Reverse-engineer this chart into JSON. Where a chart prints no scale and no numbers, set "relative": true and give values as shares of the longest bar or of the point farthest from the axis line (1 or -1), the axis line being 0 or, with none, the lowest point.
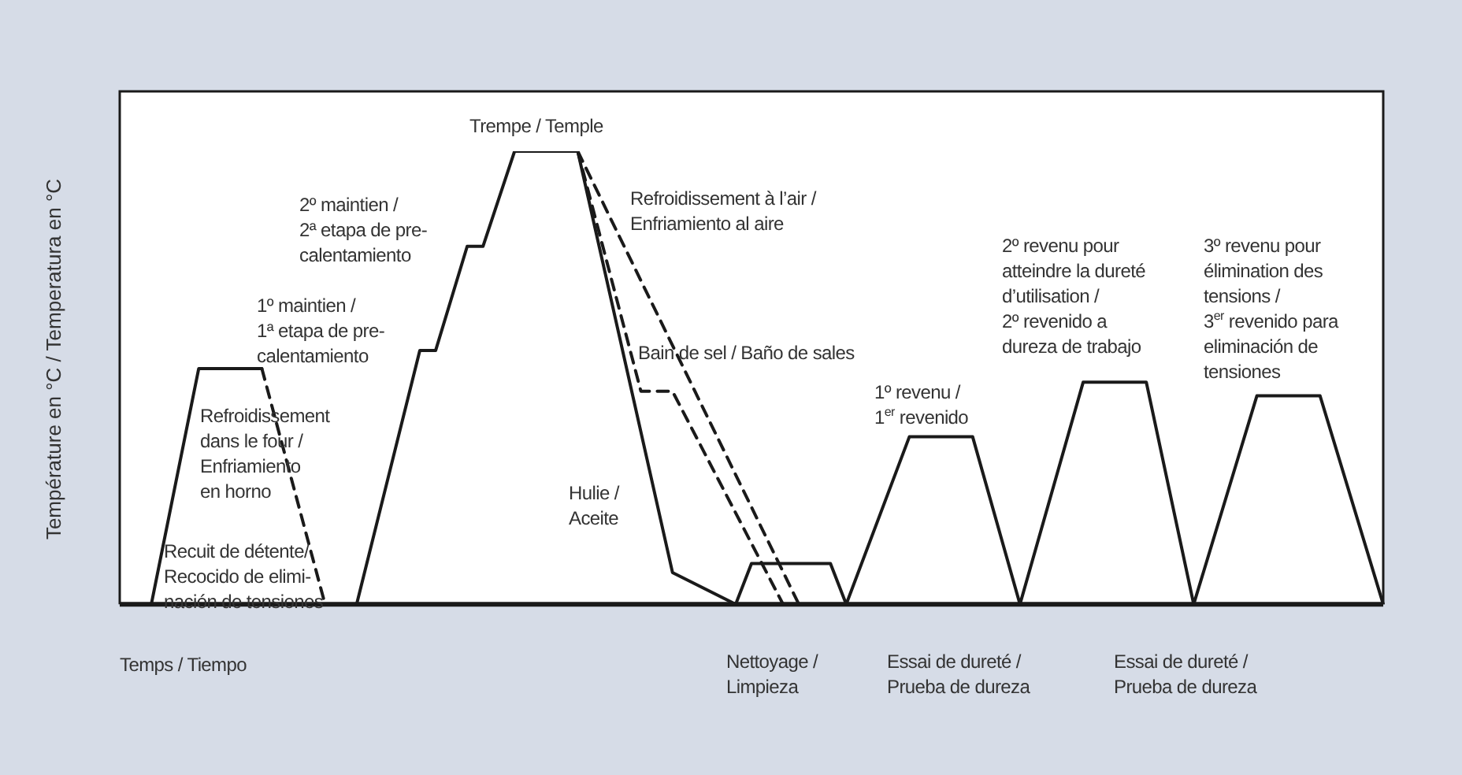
{
  "chart_data": {
    "type": "line",
    "relative": true,
    "ylabel": "Température en °C / Temperatura en °C",
    "xlabel": "Temps / Tiempo",
    "categories": [
      null,
      null,
      null,
      null,
      null,
      null,
      null,
      null,
      null,
      null,
      null,
      null,
      null,
      null,
      null,
      null,
      null,
      null,
      null,
      null,
      null,
      null,
      null,
      null,
      null,
      null,
      null,
      null,
      null,
      null,
      null,
      null,
      null,
      null,
      null,
      null,
      null,
      null,
      null,
      null,
      null,
      null,
      null,
      null,
      null,
      null,
      null,
      null,
      null,
      null,
      null,
      null,
      null,
      null,
      null,
      null,
      null,
      null,
      null,
      null,
      null,
      null,
      null,
      null,
      null,
      null,
      null,
      null,
      null,
      null,
      null,
      null,
      null,
      null,
      null,
      null,
      null,
      null,
      null,
      null,
      null
    ],
    "series": [
      {
        "color": "#1a1a1a",
        "line_style": "solid",
        "values": [
          null,
          null,
          0,
          null,
          null,
          0.52,
          null,
          null,
          null,
          0.52,
          null,
          null,
          null,
          null,
          null,
          null,
          null,
          null,
          null,
          null,
          null,
          null,
          null,
          null,
          null,
          null,
          null,
          null,
          null,
          null,
          null,
          null,
          null,
          null,
          null,
          null,
          null,
          null,
          null,
          null,
          null,
          null,
          null,
          null,
          null,
          null,
          null,
          null,
          null,
          null,
          null,
          null,
          null,
          null,
          null,
          null,
          null,
          null,
          null,
          null,
          null,
          null,
          null,
          null,
          null,
          null,
          null,
          null,
          null,
          null,
          null,
          null,
          null,
          null,
          null,
          null,
          null,
          null,
          null,
          null,
          null
        ]
      },
      {
        "color": "#1a1a1a",
        "line_style": "dashed",
        "values": [
          null,
          null,
          null,
          null,
          null,
          null,
          null,
          null,
          null,
          0.52,
          null,
          null,
          null,
          0,
          null,
          null,
          null,
          null,
          null,
          null,
          null,
          null,
          null,
          null,
          null,
          null,
          null,
          null,
          null,
          null,
          null,
          null,
          null,
          null,
          null,
          null,
          null,
          null,
          null,
          null,
          null,
          null,
          null,
          null,
          null,
          null,
          null,
          null,
          null,
          null,
          null,
          null,
          null,
          null,
          null,
          null,
          null,
          null,
          null,
          null,
          null,
          null,
          null,
          null,
          null,
          null,
          null,
          null,
          null,
          null,
          null,
          null,
          null,
          null,
          null,
          null,
          null,
          null,
          null,
          null,
          null
        ]
      },
      {
        "color": "#1a1a1a",
        "line_style": "solid",
        "values": [
          null,
          null,
          null,
          null,
          null,
          null,
          null,
          null,
          null,
          null,
          null,
          null,
          null,
          null,
          null,
          0,
          null,
          null,
          null,
          0.56,
          0.56,
          null,
          0.79,
          0.79,
          null,
          1,
          null,
          null,
          null,
          1,
          null,
          null,
          null,
          null,
          null,
          0.07,
          null,
          null,
          null,
          0,
          0.09,
          null,
          null,
          null,
          null,
          0.09,
          0,
          null,
          null,
          null,
          0.37,
          null,
          null,
          null,
          0.37,
          null,
          null,
          0,
          null,
          null,
          null,
          0.49,
          null,
          null,
          null,
          0.49,
          null,
          null,
          0,
          null,
          null,
          null,
          0.46,
          null,
          null,
          null,
          0.46,
          null,
          null,
          null,
          0
        ]
      },
      {
        "color": "#1a1a1a",
        "line_style": "dashed",
        "values": [
          null,
          null,
          null,
          null,
          null,
          null,
          null,
          null,
          null,
          null,
          null,
          null,
          null,
          null,
          null,
          null,
          null,
          null,
          null,
          null,
          null,
          null,
          null,
          null,
          null,
          null,
          null,
          null,
          null,
          1,
          null,
          null,
          null,
          0.47,
          null,
          0.47,
          null,
          null,
          null,
          null,
          null,
          null,
          0,
          null,
          null,
          null,
          null,
          null,
          null,
          null,
          null,
          null,
          null,
          null,
          null,
          null,
          null,
          null,
          null,
          null,
          null,
          null,
          null,
          null,
          null,
          null,
          null,
          null,
          null,
          null,
          null,
          null,
          null,
          null,
          null,
          null,
          null,
          null,
          null,
          null,
          null
        ]
      },
      {
        "color": "#1a1a1a",
        "line_style": "dashed",
        "values": [
          null,
          null,
          null,
          null,
          null,
          null,
          null,
          null,
          null,
          null,
          null,
          null,
          null,
          null,
          null,
          null,
          null,
          null,
          null,
          null,
          null,
          null,
          null,
          null,
          null,
          null,
          null,
          null,
          null,
          1,
          null,
          null,
          null,
          null,
          null,
          null,
          null,
          null,
          null,
          null,
          null,
          null,
          null,
          0,
          null,
          null,
          null,
          null,
          null,
          null,
          null,
          null,
          null,
          null,
          null,
          null,
          null,
          null,
          null,
          null,
          null,
          null,
          null,
          null,
          null,
          null,
          null,
          null,
          null,
          null,
          null,
          null,
          null,
          null,
          null,
          null,
          null,
          null,
          null,
          null,
          null
        ]
      }
    ],
    "marker": "none",
    "grid": false,
    "legend": false,
    "annotations": [
      "Trempe / Temple",
      "Refroidissement à l’air /\nEnfriamiento al aire",
      "2º maintien /\n2ª etapa de pre-\ncalentamiento",
      "1º maintien /\n1ª etapa de pre-\ncalentamiento",
      "Refroidissement\ndans le four /\nEnfriamiento\nen horno",
      "Recuit de détente/\nRecocido de elimi-\nnación de tensiones",
      "Bain de sel / Baño de sales",
      "Hulie /\nAceite",
      "1º revenu /\n1$^{er}$ revenido",
      "2º revenu pour\natteindre la dureté\nd’utilisation /\n2º revenido a\ndureza de trabajo",
      "3º revenu pour\nélimination des\ntensions /\n3$^{er}$ revenido para\neliminación de\ntensiones",
      "Nettoyage /\nLimpieza",
      "Essai de dureté /\nPrueba de dureza",
      "Essai de dureté /\nPrueba de dureza"
    ]
  }
}
